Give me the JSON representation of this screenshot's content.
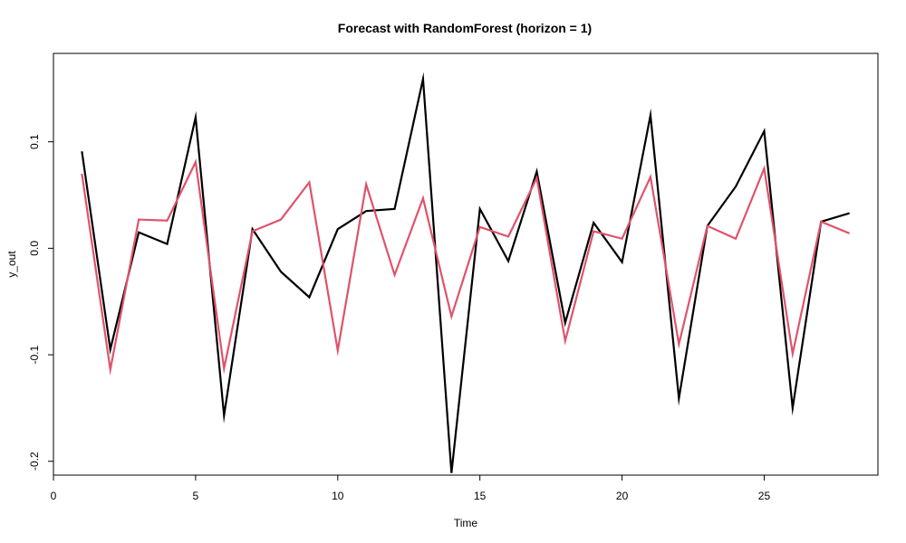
{
  "chart_data": {
    "type": "line",
    "title": "Forecast with RandomForest (horizon = 1)",
    "xlabel": "Time",
    "ylabel": "y_out",
    "xlim": [
      0,
      29
    ],
    "ylim": [
      -0.213,
      0.183
    ],
    "x_ticks": [
      0,
      5,
      10,
      15,
      20,
      25
    ],
    "x_tick_labels": [
      "0",
      "5",
      "10",
      "15",
      "20",
      "25"
    ],
    "y_ticks": [
      -0.2,
      -0.1,
      0.0,
      0.1
    ],
    "y_tick_labels": [
      "-0.2",
      "-0.1",
      "0.0",
      "0.1"
    ],
    "grid": false,
    "legend": "none",
    "x": [
      1,
      2,
      3,
      4,
      5,
      6,
      7,
      8,
      9,
      10,
      11,
      12,
      13,
      14,
      15,
      16,
      17,
      18,
      19,
      20,
      21,
      22,
      23,
      24,
      25,
      26,
      27,
      28
    ],
    "series": [
      {
        "color": "#000000",
        "values": [
          0.091,
          -0.095,
          0.015,
          0.004,
          0.123,
          -0.157,
          0.018,
          -0.022,
          -0.046,
          0.018,
          0.035,
          0.037,
          0.159,
          -0.211,
          0.037,
          -0.012,
          0.072,
          -0.07,
          0.024,
          -0.013,
          0.125,
          -0.141,
          0.021,
          0.058,
          0.11,
          -0.15,
          0.025,
          0.033
        ]
      },
      {
        "color": "#DF536B",
        "values": [
          0.07,
          -0.114,
          0.027,
          0.026,
          0.081,
          -0.113,
          0.016,
          0.027,
          0.062,
          -0.096,
          0.06,
          -0.025,
          0.047,
          -0.064,
          0.02,
          0.011,
          0.066,
          -0.087,
          0.016,
          0.009,
          0.067,
          -0.09,
          0.021,
          0.009,
          0.075,
          -0.099,
          0.025,
          0.014
        ]
      }
    ]
  }
}
